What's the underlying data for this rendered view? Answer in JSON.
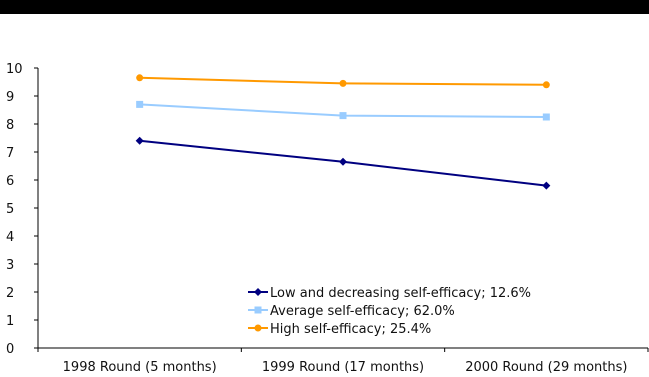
{
  "chart_data": {
    "type": "line",
    "title": "",
    "xlabel": "",
    "ylabel": "",
    "categories": [
      "1998 Round (5 months)",
      "1999 Round (17 months)",
      "2000 Round (29 months)"
    ],
    "ylim": [
      0,
      10
    ],
    "yticks": [
      0,
      1,
      2,
      3,
      4,
      5,
      6,
      7,
      8,
      9,
      10
    ],
    "grid": false,
    "legend_position": "bottom-right",
    "series": [
      {
        "name": "Low and decreasing self-efficacy; 12.6%",
        "values": [
          7.4,
          6.65,
          5.8
        ],
        "color": "#000080",
        "marker": "diamond"
      },
      {
        "name": "Average self-efficacy; 62.0%",
        "values": [
          8.7,
          8.3,
          8.25
        ],
        "color": "#99ccff",
        "marker": "square"
      },
      {
        "name": "High self-efficacy; 25.4%",
        "values": [
          9.65,
          9.45,
          9.4
        ],
        "color": "#ff9900",
        "marker": "circle"
      }
    ]
  }
}
